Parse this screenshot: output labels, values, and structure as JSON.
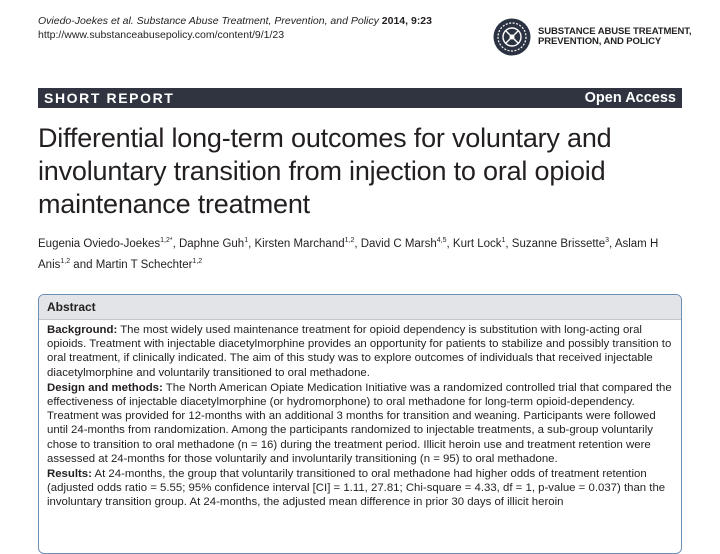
{
  "citation": {
    "line1_authors": "Oviedo-Joekes et al.",
    "line1_journal": "Substance Abuse Treatment, Prevention, and Policy",
    "line1_volume": "2014, 9:23",
    "url": "http://www.substanceabusepolicy.com/content/9/1/23"
  },
  "journal_logo": {
    "icon": "journal-seal-icon",
    "name_line1": "SUBSTANCE ABUSE TREATMENT,",
    "name_line2": "PREVENTION, AND POLICY",
    "color": "#231f20"
  },
  "banner": {
    "type_label": "SHORT REPORT",
    "access_label": "Open Access",
    "background": "#2f3440"
  },
  "title": "Differential long-term outcomes for voluntary and involuntary transition from injection to oral opioid maintenance treatment",
  "authors": [
    {
      "name": "Eugenia Oviedo-Joekes",
      "aff": "1,2*",
      "sep": ", "
    },
    {
      "name": "Daphne Guh",
      "aff": "1",
      "sep": ", "
    },
    {
      "name": "Kirsten Marchand",
      "aff": "1,2",
      "sep": ", "
    },
    {
      "name": "David C Marsh",
      "aff": "4,5",
      "sep": ", "
    },
    {
      "name": "Kurt Lock",
      "aff": "1",
      "sep": ", "
    },
    {
      "name": "Suzanne Brissette",
      "aff": "3",
      "sep": ", "
    },
    {
      "name": "Aslam H Anis",
      "aff": "1,2",
      "sep": " and "
    },
    {
      "name": "Martin T Schechter",
      "aff": "1,2",
      "sep": ""
    }
  ],
  "abstract": {
    "heading": "Abstract",
    "accent_color": "#6b8fb6",
    "sections": [
      {
        "label": "Background:",
        "text": "The most widely used maintenance treatment for opioid dependency is substitution with long-acting oral opioids. Treatment with injectable diacetylmorphine provides an opportunity for patients to stabilize and possibly transition to oral treatment, if clinically indicated. The aim of this study was to explore outcomes of individuals that received injectable diacetylmorphine and voluntarily transitioned to oral methadone."
      },
      {
        "label": "Design and methods:",
        "text": "The North American Opiate Medication Initiative was a randomized controlled trial that compared the effectiveness of injectable diacetylmorphine (or hydromorphone) to oral methadone for long-term opioid-dependency. Treatment was provided for 12-months with an additional 3 months for transition and weaning. Participants were followed until 24-months from randomization. Among the participants randomized to injectable treatments, a sub-group voluntarily chose to transition to oral methadone (n = 16) during the treatment period. Illicit heroin use and treatment retention were assessed at 24-months for those voluntarily and involuntarily transitioning (n = 95) to oral methadone."
      },
      {
        "label": "Results:",
        "text": "At 24-months, the group that voluntarily transitioned to oral methadone had higher odds of treatment retention (adjusted odds ratio = 5.55; 95% confidence interval [CI] = 1.11, 27.81; Chi-square = 4.33, df = 1, p-value = 0.037) than the involuntary transition group. At 24-months, the adjusted mean difference in prior 30 days of illicit heroin"
      }
    ]
  }
}
